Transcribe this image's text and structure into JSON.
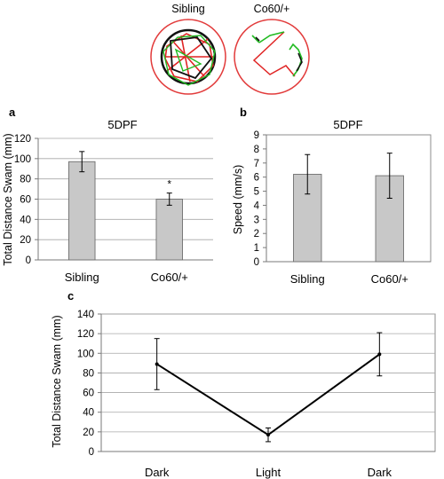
{
  "colors": {
    "bar_fill": "#c8c8c8",
    "grid": "#a8a8a8",
    "dish_ring": "#e23b3b",
    "trace_red": "#e02424",
    "trace_green": "#22bb22",
    "trace_black": "#111111"
  },
  "tracks": {
    "left_label": "Sibling",
    "right_label": "Co60/+"
  },
  "panels": {
    "a": "a",
    "b": "b",
    "c": "c"
  },
  "chart_data": [
    {
      "id": "a",
      "type": "bar",
      "title": "5DPF",
      "ylabel": "Total Distance Swam (mm)",
      "xlabel": "",
      "categories": [
        "Sibling",
        "Co60/+"
      ],
      "values": [
        97,
        60
      ],
      "errors": [
        10,
        6
      ],
      "annotations": [
        "",
        "*"
      ],
      "ylim": [
        0,
        120
      ],
      "yticks": [
        "0",
        "20",
        "40",
        "60",
        "80",
        "100",
        "120"
      ],
      "grid": true
    },
    {
      "id": "b",
      "type": "bar",
      "title": "5DPF",
      "ylabel": "Speed (mm/s)",
      "xlabel": "",
      "categories": [
        "Sibling",
        "Co60/+"
      ],
      "values": [
        6.2,
        6.1
      ],
      "errors": [
        1.4,
        1.6
      ],
      "ylim": [
        0,
        9
      ],
      "yticks": [
        "0",
        "1",
        "2",
        "3",
        "4",
        "5",
        "6",
        "7",
        "8",
        "9"
      ],
      "grid": false
    },
    {
      "id": "c",
      "type": "line",
      "title": "",
      "ylabel": "Total Distance Swam (mm)",
      "xlabel": "",
      "categories": [
        "Dark",
        "Light",
        "Dark"
      ],
      "values": [
        89,
        17,
        99
      ],
      "errors": [
        26,
        7,
        22
      ],
      "ylim": [
        0,
        140
      ],
      "yticks": [
        "0",
        "20",
        "40",
        "60",
        "80",
        "100",
        "120",
        "140"
      ],
      "grid": true
    }
  ]
}
